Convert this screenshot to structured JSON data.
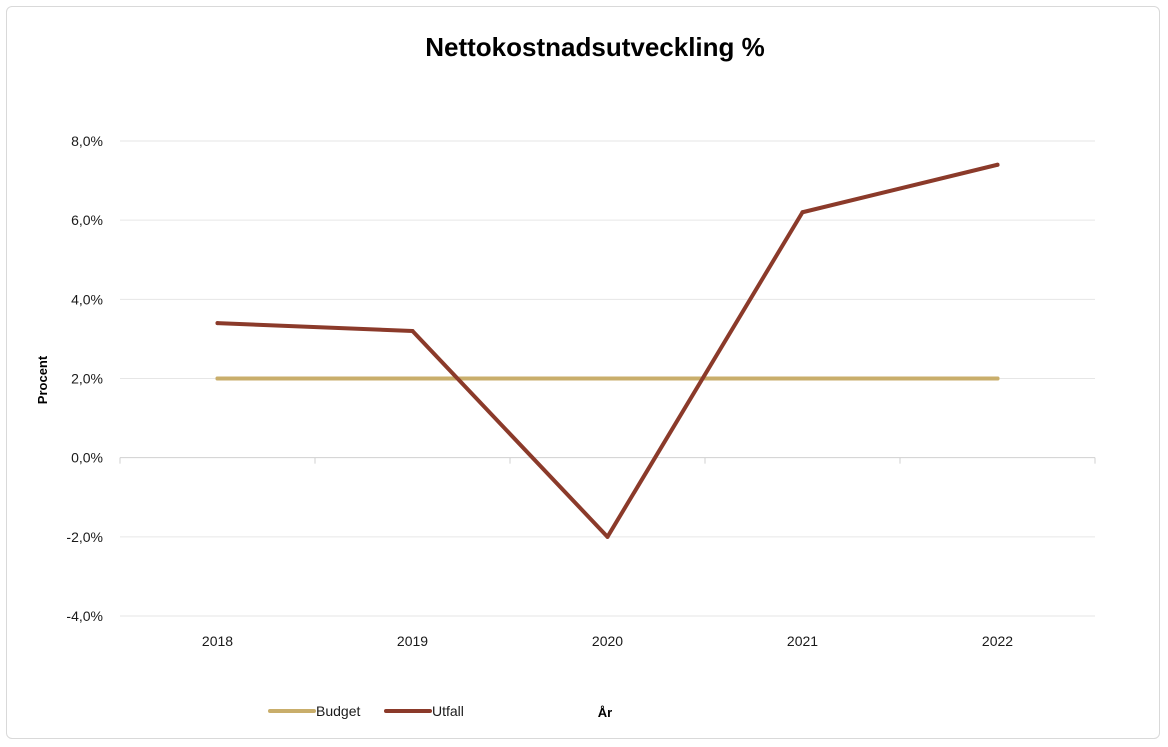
{
  "chart_data": {
    "type": "line",
    "title": "Nettokostnadsutveckling %",
    "xlabel": "År",
    "ylabel": "Procent",
    "categories": [
      "2018",
      "2019",
      "2020",
      "2021",
      "2022"
    ],
    "ylim": [
      -4.0,
      8.0
    ],
    "yticks": [
      8.0,
      6.0,
      4.0,
      2.0,
      0.0,
      -2.0,
      -4.0
    ],
    "ytick_labels": [
      "8,0%",
      "6,0%",
      "4,0%",
      "2,0%",
      "0,0%",
      "-2,0%",
      "-4,0%"
    ],
    "grid": true,
    "legend_position": "bottom",
    "series": [
      {
        "name": "Budget",
        "color": "#c9ae6b",
        "values": [
          2.0,
          2.0,
          2.0,
          2.0,
          2.0
        ]
      },
      {
        "name": "Utfall",
        "color": "#8b3a2a",
        "values": [
          3.4,
          3.2,
          -2.0,
          6.2,
          7.4
        ]
      }
    ]
  }
}
